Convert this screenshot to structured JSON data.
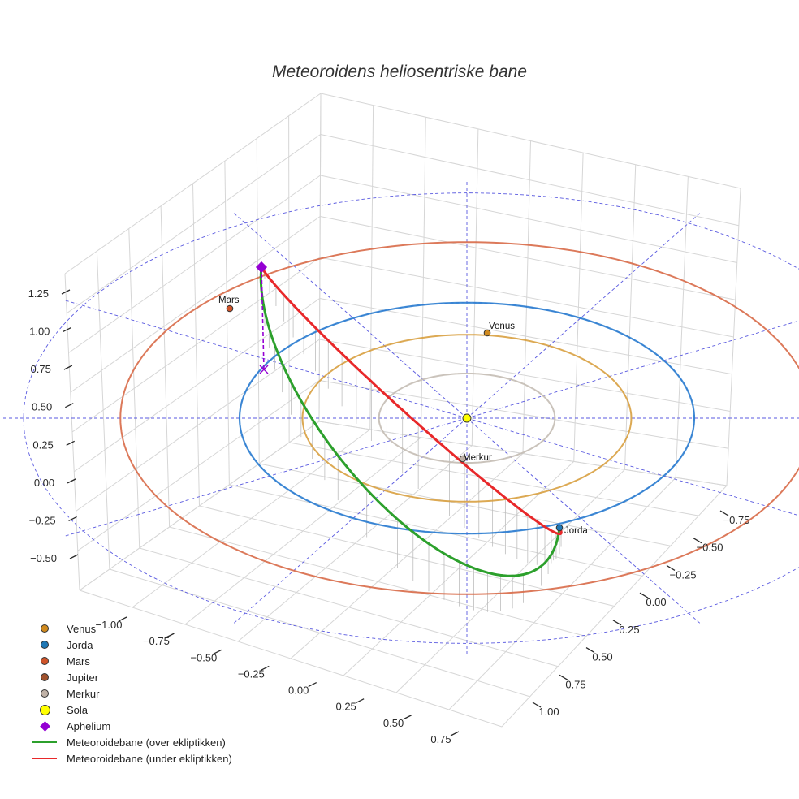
{
  "chart_data": {
    "type": "3d-line",
    "title": "Meteoroidens heliosentriske bane",
    "axes": {
      "x": {
        "ticks": [
          -1.0,
          -0.75,
          -0.5,
          -0.25,
          0.0,
          0.25,
          0.5,
          0.75
        ],
        "tick_labels": [
          "−1.00",
          "−0.75",
          "−0.50",
          "−0.25",
          "0.00",
          "0.25",
          "0.50",
          "0.75"
        ]
      },
      "y": {
        "ticks": [
          -0.75,
          -0.5,
          -0.25,
          0.0,
          0.25,
          0.5,
          0.75,
          1.0
        ],
        "tick_labels": [
          "−0.75",
          "−0.50",
          "−0.25",
          "0.00",
          "0.25",
          "0.50",
          "0.75",
          "1.00"
        ]
      },
      "z": {
        "ticks": [
          -0.5,
          -0.25,
          0.0,
          0.25,
          0.5,
          0.75,
          1.0,
          1.25
        ],
        "tick_labels": [
          "−0.50",
          "−0.25",
          "0.00",
          "0.25",
          "0.50",
          "0.75",
          "1.00",
          "1.25"
        ]
      }
    },
    "orbits": [
      {
        "name": "Merkur",
        "radius_au": 0.387,
        "color": "#c4bcb4"
      },
      {
        "name": "Venus",
        "radius_au": 0.723,
        "color": "#d8a040"
      },
      {
        "name": "Jorda",
        "radius_au": 1.0,
        "color": "#2e7fd0"
      },
      {
        "name": "Mars",
        "radius_au": 1.524,
        "color": "#d86a48"
      }
    ],
    "bodies": [
      {
        "name": "Venus",
        "label": "Venus",
        "color": "#d08a1e"
      },
      {
        "name": "Jorda",
        "label": "Jorda",
        "color": "#1f77b4"
      },
      {
        "name": "Mars",
        "label": "Mars",
        "color": "#d0542a"
      },
      {
        "name": "Jupiter",
        "label": "",
        "color": "#a0522d"
      },
      {
        "name": "Merkur",
        "label": "Merkur",
        "color": "#bfb1a6"
      },
      {
        "name": "Sola",
        "label": "",
        "color": "#ffff00"
      }
    ],
    "meteoroid_orbit": {
      "above_ecliptic_name": "Meteoroidebane (over ekliptikken)",
      "above_color": "#2ca02c",
      "below_ecliptic_name": "Meteoroidebane (under ekliptikken)",
      "below_color": "#e8282a"
    },
    "aphelium": {
      "name": "Aphelium",
      "color": "#9400d3",
      "marker": "diamond"
    }
  },
  "legend": [
    {
      "label": "Venus",
      "kind": "dot",
      "color": "#d08a1e"
    },
    {
      "label": "Jorda",
      "kind": "dot",
      "color": "#1f77b4"
    },
    {
      "label": "Mars",
      "kind": "dot",
      "color": "#d0542a"
    },
    {
      "label": "Jupiter",
      "kind": "dot",
      "color": "#a0522d"
    },
    {
      "label": "Merkur",
      "kind": "dot",
      "color": "#bfb1a6"
    },
    {
      "label": "Sola",
      "kind": "bigdot",
      "color": "#ffff00"
    },
    {
      "label": "Aphelium",
      "kind": "diamond",
      "color": "#9400d3"
    },
    {
      "label": "Meteoroidebane (over ekliptikken)",
      "kind": "line",
      "color": "#2ca02c"
    },
    {
      "label": "Meteoroidebane (under ekliptikken)",
      "kind": "line",
      "color": "#e8282a"
    }
  ]
}
